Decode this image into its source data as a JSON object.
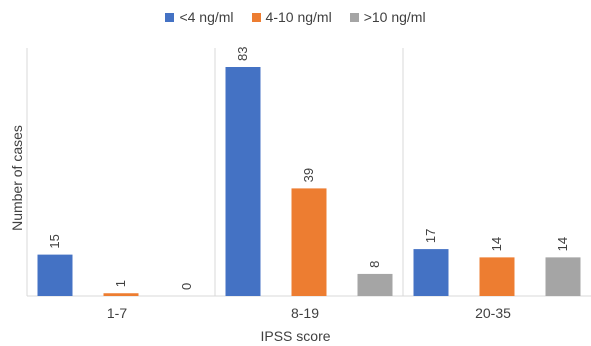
{
  "chart_data": {
    "type": "bar",
    "categories": [
      "1-7",
      "8-19",
      "20-35"
    ],
    "series": [
      {
        "name": "<4 ng/ml",
        "values": [
          15,
          83,
          17
        ],
        "color": "#4472C4"
      },
      {
        "name": "4-10 ng/ml",
        "values": [
          1,
          39,
          14
        ],
        "color": "#ED7D31"
      },
      {
        "name": ">10 ng/ml",
        "values": [
          0,
          8,
          14
        ],
        "color": "#A5A5A5"
      }
    ],
    "xlabel": "IPSS score",
    "ylabel": "Number of cases",
    "ylim": [
      0,
      85
    ],
    "legend_position": "top",
    "grid": false
  }
}
